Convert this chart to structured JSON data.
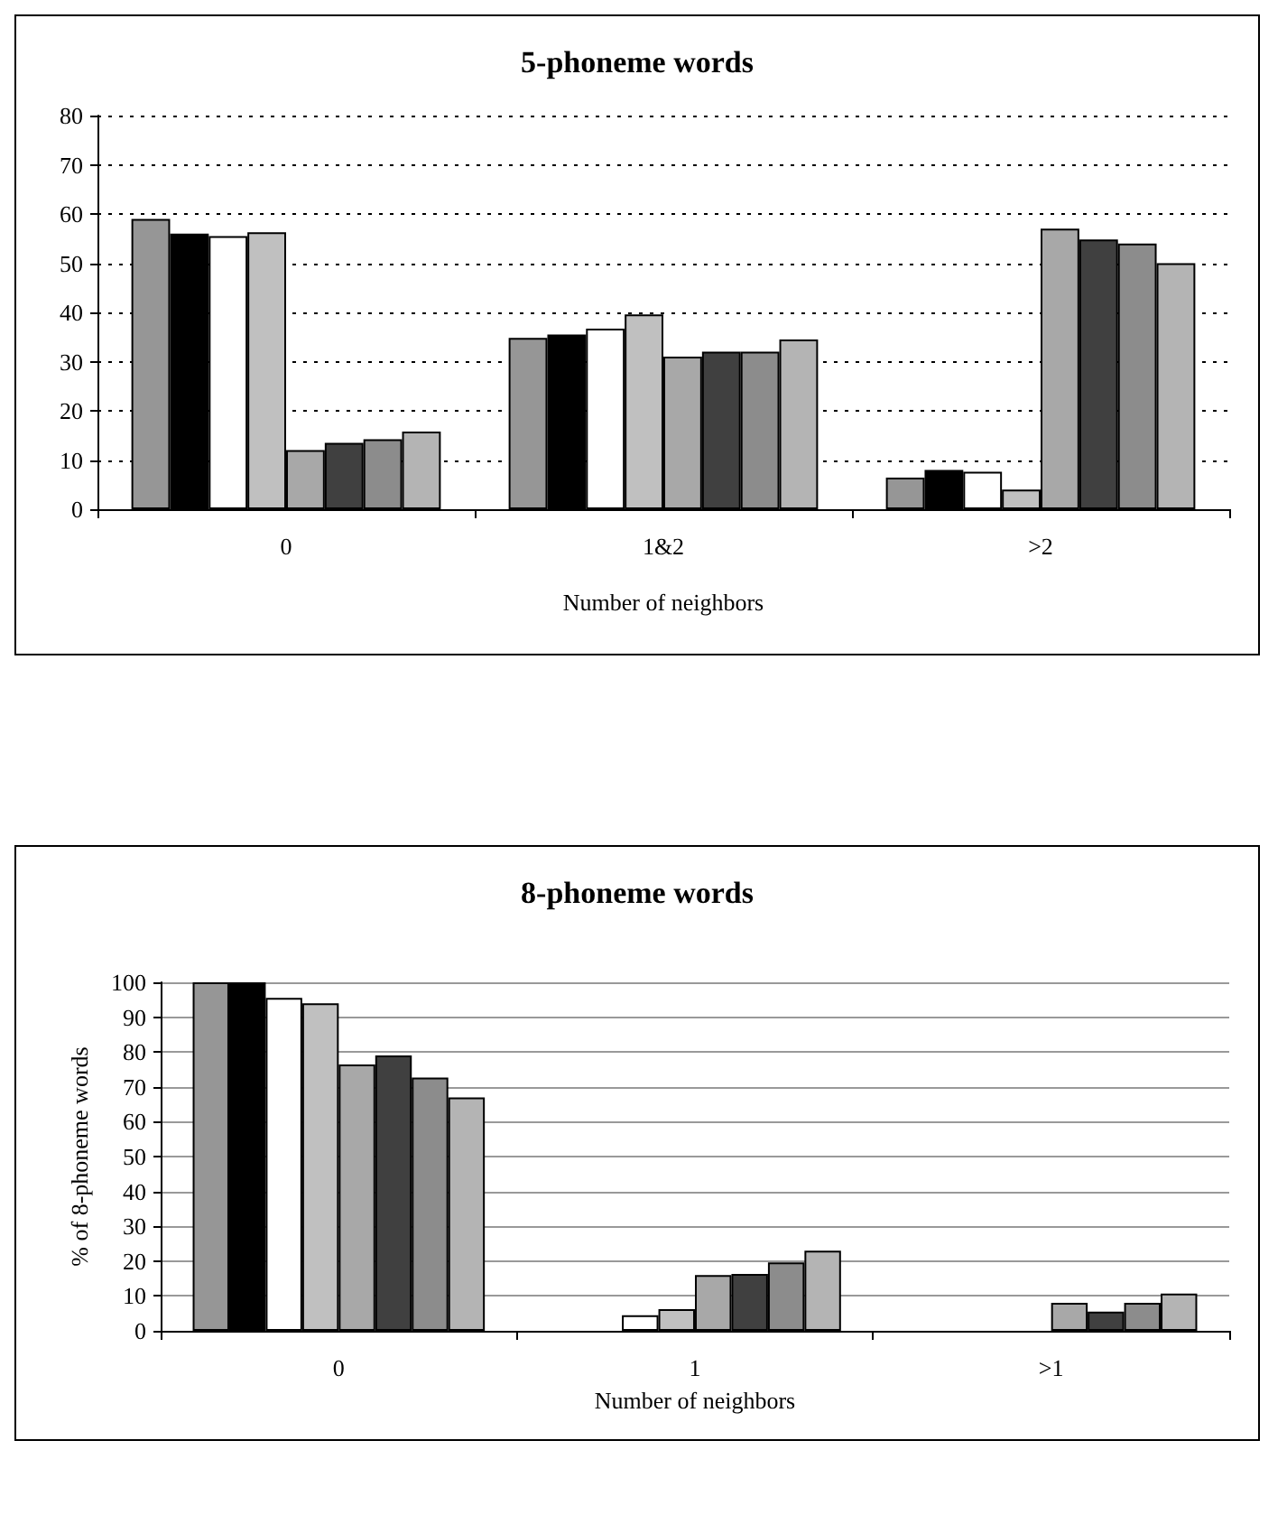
{
  "chart_data": [
    {
      "type": "bar",
      "title": "5-phoneme words",
      "xlabel": "Number of neighbors",
      "categories": [
        "0",
        "1&2",
        ">2"
      ],
      "ylim": [
        0,
        80
      ],
      "yticks": [
        0,
        10,
        20,
        30,
        40,
        50,
        60,
        70,
        80
      ],
      "grid": "y",
      "legend": false,
      "series": [
        {
          "color": "#969696",
          "values": [
            59,
            34.8,
            6.4
          ]
        },
        {
          "color": "#000000",
          "values": [
            56,
            35.5,
            8
          ]
        },
        {
          "color": "#ffffff",
          "values": [
            55.5,
            36.7,
            7.6
          ]
        },
        {
          "color": "#c0c0c0",
          "values": [
            56.3,
            39.6,
            4
          ]
        },
        {
          "color": "#a8a8a8",
          "values": [
            12,
            31,
            57
          ]
        },
        {
          "color": "#404040",
          "values": [
            13.5,
            32,
            54.8
          ]
        },
        {
          "color": "#8c8c8c",
          "values": [
            14.2,
            32,
            54
          ]
        },
        {
          "color": "#b4b4b4",
          "values": [
            15.8,
            34.5,
            50
          ]
        }
      ]
    },
    {
      "type": "bar",
      "title": "8-phoneme words",
      "xlabel": "Number of neighbors",
      "ylabel": "% of 8-phoneme words",
      "categories": [
        "0",
        "1",
        ">1"
      ],
      "ylim": [
        0,
        100
      ],
      "yticks": [
        0,
        10,
        20,
        30,
        40,
        50,
        60,
        70,
        80,
        90,
        100
      ],
      "grid": "y",
      "legend": false,
      "series": [
        {
          "color": "#969696",
          "values": [
            100,
            null,
            null
          ]
        },
        {
          "color": "#000000",
          "values": [
            100,
            null,
            null
          ]
        },
        {
          "color": "#ffffff",
          "values": [
            95.5,
            4.5,
            null
          ]
        },
        {
          "color": "#c0c0c0",
          "values": [
            94,
            6.2,
            null
          ]
        },
        {
          "color": "#a8a8a8",
          "values": [
            76.4,
            16,
            8
          ]
        },
        {
          "color": "#404040",
          "values": [
            79,
            16.3,
            5.5
          ]
        },
        {
          "color": "#8c8c8c",
          "values": [
            72.7,
            19.6,
            8
          ]
        },
        {
          "color": "#b4b4b4",
          "values": [
            67,
            23,
            10.7
          ]
        }
      ]
    }
  ]
}
